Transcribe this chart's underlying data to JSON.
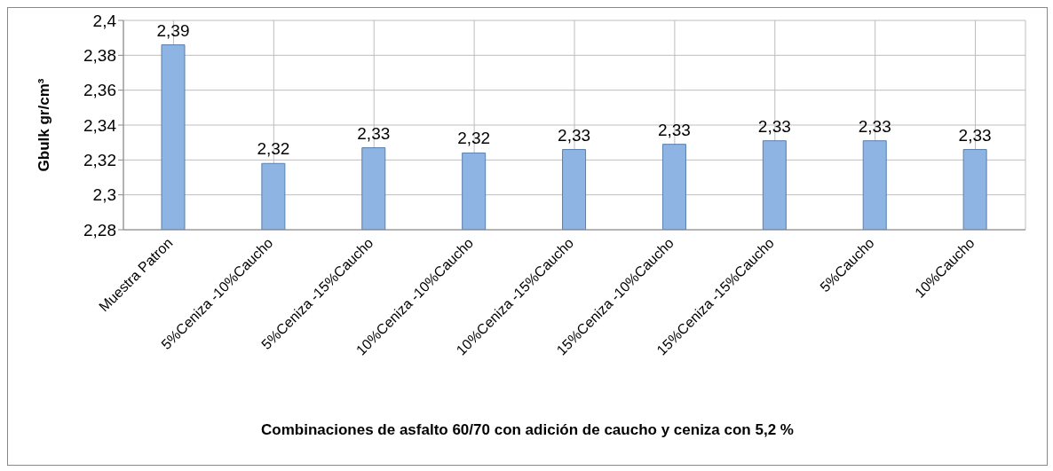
{
  "chart_data": {
    "type": "bar",
    "xlabel": "Combinaciones de asfalto 60/70 con adición de caucho y ceniza  con 5,2 %",
    "ylabel": "Gbulk  gr/cm³",
    "categories": [
      "Muestra Patron",
      "5%Ceniza -10%Caucho",
      "5%Ceniza -15%Caucho",
      "10%Ceniza -10%Caucho",
      "10%Ceniza -15%Caucho",
      "15%Ceniza -10%Caucho",
      "15%Ceniza -15%Caucho",
      "5%Caucho",
      "10%Caucho"
    ],
    "values": [
      2.386,
      2.318,
      2.327,
      2.324,
      2.326,
      2.329,
      2.331,
      2.331,
      2.326
    ],
    "value_labels": [
      "2,39",
      "2,32",
      "2,33",
      "2,32",
      "2,33",
      "2,33",
      "2,33",
      "2,33",
      "2,33"
    ],
    "color": "#8db4e2",
    "ylim": [
      2.28,
      2.4
    ],
    "yticks": [
      {
        "value": 2.28,
        "label": "2,28"
      },
      {
        "value": 2.3,
        "label": "2,3"
      },
      {
        "value": 2.32,
        "label": "2,32"
      },
      {
        "value": 2.34,
        "label": "2,34"
      },
      {
        "value": 2.36,
        "label": "2,36"
      },
      {
        "value": 2.38,
        "label": "2,38"
      },
      {
        "value": 2.4,
        "label": "2,4"
      }
    ],
    "grid": true,
    "legend": false
  }
}
